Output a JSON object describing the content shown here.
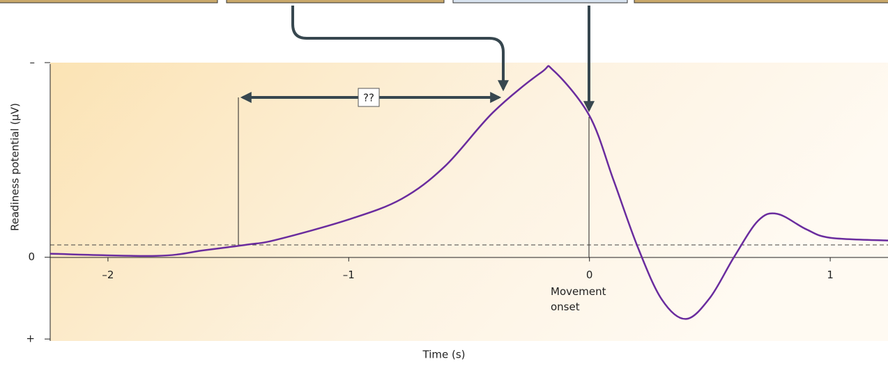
{
  "chart_data": {
    "type": "line",
    "x_label": "Time (s)",
    "y_label": "Readiness potential (µV)",
    "annotations": [
      "??",
      "Movement onset"
    ],
    "x": [
      -2.24,
      -1.8,
      -1.6,
      -1.42,
      -1.3,
      -1.0,
      -0.78,
      -0.6,
      -0.4,
      -0.2,
      -0.15,
      0,
      0.1,
      0.2,
      0.3,
      0.4,
      0.5,
      0.6,
      0.7,
      0.78,
      0.9,
      1.0,
      1.24
    ],
    "series": [
      {
        "color": "#6a2c9e",
        "values": [
          -0.018,
          -0.007,
          -0.036,
          -0.065,
          -0.09,
          -0.194,
          -0.3,
          -0.468,
          -0.745,
          -0.95,
          -0.96,
          -0.727,
          -0.396,
          -0.054,
          0.216,
          0.317,
          0.209,
          0,
          -0.187,
          -0.223,
          -0.144,
          -0.1,
          -0.086
        ]
      }
    ],
    "xlim": [
      -2.24,
      1.24
    ],
    "ylim": [
      0.43,
      -1
    ],
    "xticks": [
      {
        "value": -2,
        "label": "–2"
      },
      {
        "value": -1,
        "label": "–1"
      },
      0,
      1
    ],
    "yticks": [
      {
        "value": -1,
        "label": "–"
      },
      0,
      {
        "value": 0.42,
        "label": "+"
      }
    ]
  }
}
